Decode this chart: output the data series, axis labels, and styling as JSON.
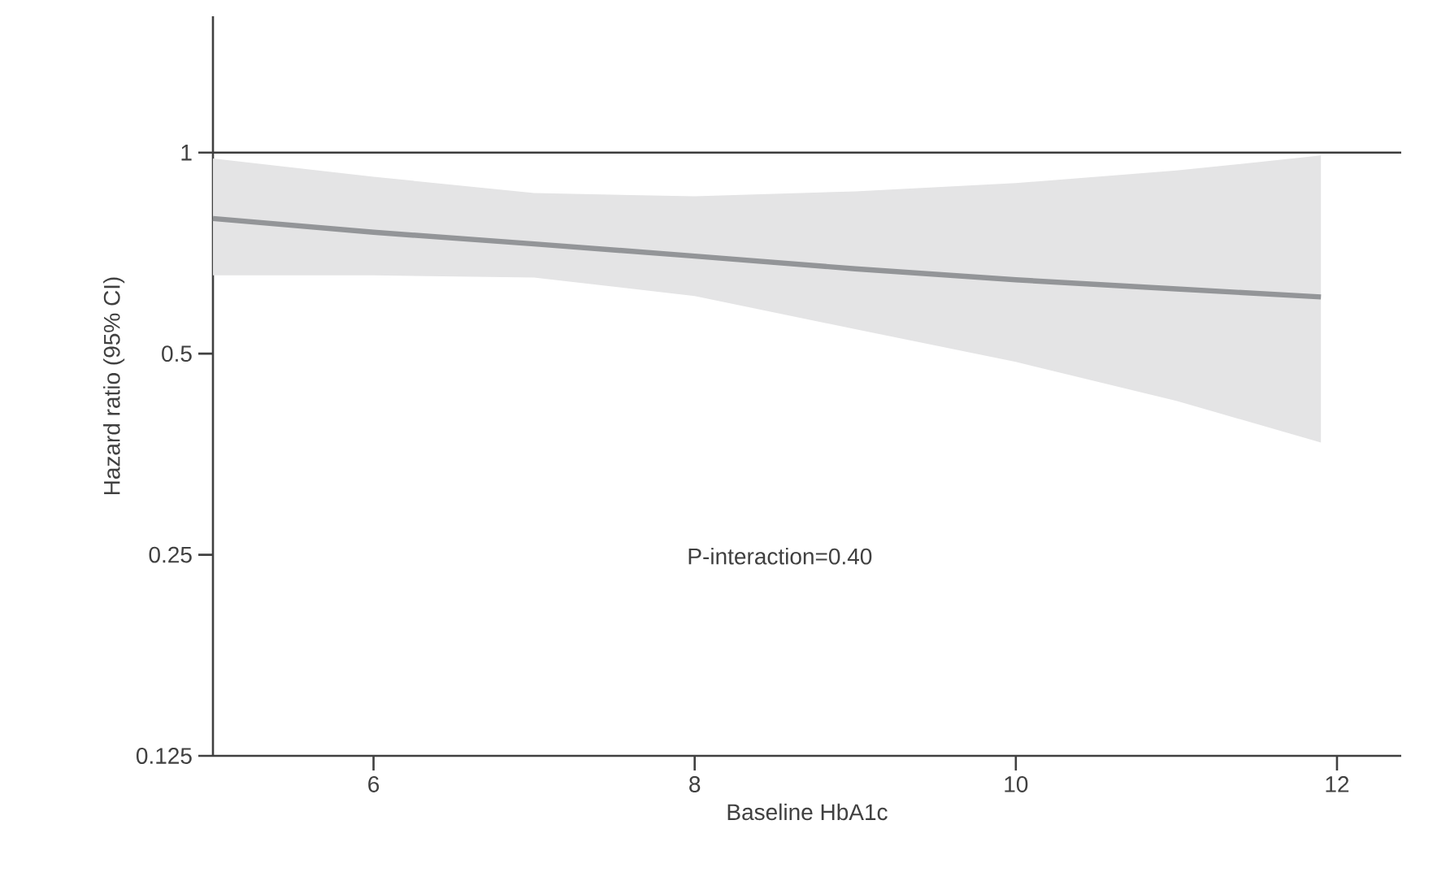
{
  "chart_data": {
    "type": "line",
    "xlabel": "Baseline HbA1c",
    "ylabel": "Hazard ratio (95% CI)",
    "x": [
      5,
      6,
      7,
      8,
      9,
      10,
      11,
      11.9
    ],
    "series": [
      {
        "color": "#939598",
        "values": [
          0.797,
          0.76,
          0.73,
          0.7,
          0.67,
          0.645,
          0.625,
          0.608
        ],
        "lower": [
          0.655,
          0.655,
          0.65,
          0.61,
          0.544,
          0.486,
          0.425,
          0.368
        ],
        "upper": [
          0.98,
          0.92,
          0.87,
          0.86,
          0.875,
          0.9,
          0.94,
          0.99
        ]
      }
    ],
    "log": "y",
    "xlim": [
      5,
      12.4
    ],
    "ylim": [
      0.125,
      1.6
    ],
    "xticks": [
      6,
      8,
      10,
      12
    ],
    "yticks": [
      0.125,
      0.25,
      0.5,
      1
    ],
    "ref_lines": [
      {
        "axis": "y",
        "value": 1,
        "color": "#3c3c3c"
      }
    ],
    "annotations": [
      "P-interaction=0.40"
    ]
  }
}
